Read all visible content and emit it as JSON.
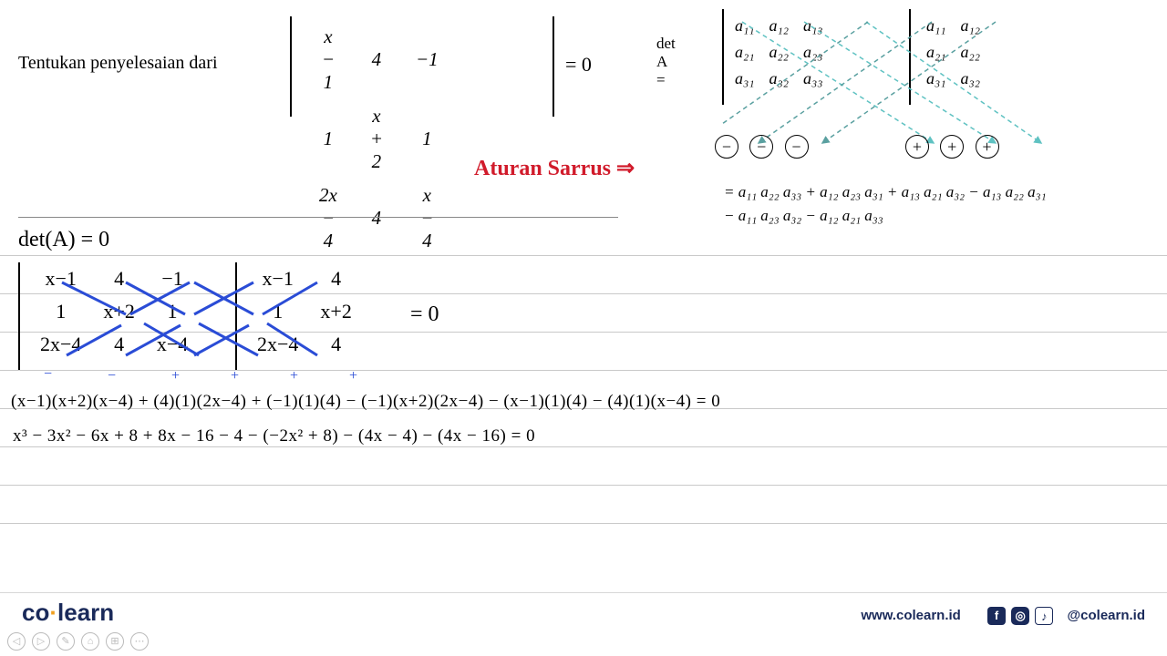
{
  "problem": {
    "prefix": "Tentukan penyelesaian dari",
    "matrix": [
      [
        "x − 1",
        "4",
        "−1"
      ],
      [
        "1",
        "x + 2",
        "1"
      ],
      [
        "2x − 4",
        "4",
        "x − 4"
      ]
    ],
    "rhs": "= 0"
  },
  "sarrus": {
    "label": "det A =",
    "title_red": "Aturan Sarrus ⇒",
    "elems": [
      [
        "a₁₁",
        "a₁₂",
        "a₁₃"
      ],
      [
        "a₂₁",
        "a₂₂",
        "a₂₃"
      ],
      [
        "a₃₁",
        "a₃₂",
        "a₃₃"
      ]
    ],
    "ext": [
      [
        "a₁₁",
        "a₁₂"
      ],
      [
        "a₂₁",
        "a₂₂"
      ],
      [
        "a₃₁",
        "a₃₂"
      ]
    ],
    "signs_neg": [
      "−",
      "−",
      "−"
    ],
    "signs_pos": [
      "+",
      "+",
      "+"
    ],
    "formula_l1": "= a₁₁ a₂₂ a₃₃ + a₁₂ a₂₃ a₃₁ + a₁₃ a₂₁ a₃₂ − a₁₃ a₂₂ a₃₁",
    "formula_l2": "   − a₁₁ a₂₃ a₃₂ − a₁₂ a₂₁ a₃₃",
    "line_color_neg": "#5aa0a0",
    "line_color_pos": "#5fc2c2"
  },
  "work": {
    "det_header": "det(A) = 0",
    "hw_matrix": [
      [
        "x−1",
        "4",
        "−1"
      ],
      [
        "1",
        "x+2",
        "1"
      ],
      [
        "2x−4",
        "4",
        "x−4"
      ]
    ],
    "hw_ext": [
      [
        "x−1",
        "4"
      ],
      [
        "1",
        "x+2"
      ],
      [
        "2x−4",
        "4"
      ]
    ],
    "hw_eq": "=   0",
    "stroke_blue": "#2a4cd6",
    "plus_signs": [
      "+",
      "+",
      "+",
      "−",
      "−",
      "−"
    ],
    "line1": "(x−1)(x+2)(x−4) + (4)(1)(2x−4) + (−1)(1)(4) − (−1)(x+2)(2x−4) − (x−1)(1)(4) − (4)(1)(x−4) = 0",
    "line2": "x³ − 3x² − 6x + 8 + 8x − 16 − 4 − (−2x² + 8) − (4x − 4) − (4x − 16) = 0"
  },
  "footer": {
    "logo_co": "co",
    "logo_learn": "learn",
    "url": "www.colearn.id",
    "handle": "@colearn.id",
    "nav": [
      "◁",
      "▷",
      "✎",
      "⌂",
      "⊞",
      "⋯"
    ]
  },
  "ruled_lines_count": 8,
  "ruled_line_gap": 42
}
